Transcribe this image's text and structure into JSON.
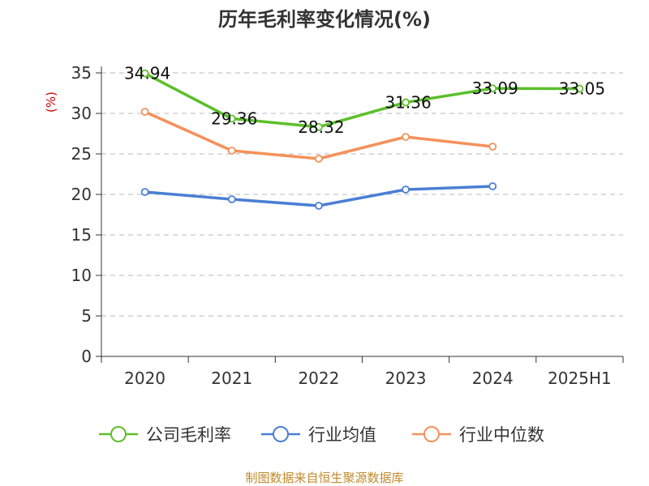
{
  "chart_data": {
    "type": "line",
    "title": "历年毛利率变化情况(%)",
    "ylabel": "(%)",
    "xlabel": "",
    "categories": [
      "2020",
      "2021",
      "2022",
      "2023",
      "2024",
      "2025H1"
    ],
    "ylim": [
      0,
      35
    ],
    "yticks": [
      "0",
      "5",
      "10",
      "15",
      "20",
      "25",
      "30",
      "35"
    ],
    "grid": true,
    "legend_position": "bottom",
    "series": [
      {
        "name": "公司毛利率",
        "color": "#5cbf2a",
        "values": [
          34.94,
          29.36,
          28.32,
          31.36,
          33.09,
          33.05
        ],
        "labels": [
          "34.94",
          "29.36",
          "28.32",
          "31.36",
          "33.09",
          "33.05"
        ]
      },
      {
        "name": "行业均值",
        "color": "#4a7fd4",
        "values": [
          20.3,
          19.4,
          18.6,
          20.6,
          21.0,
          null
        ]
      },
      {
        "name": "行业中位数",
        "color": "#f5915a",
        "values": [
          30.2,
          25.4,
          24.4,
          27.1,
          25.9,
          null
        ]
      }
    ],
    "source": "制图数据来自恒生聚源数据库"
  }
}
